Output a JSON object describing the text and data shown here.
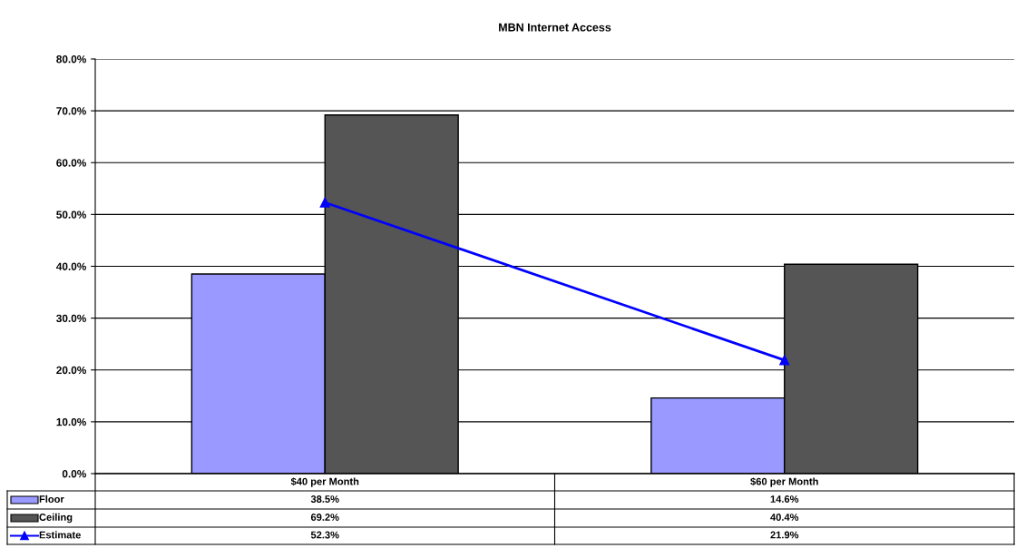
{
  "chart_data": {
    "type": "bar",
    "title": "MBN Internet Access",
    "categories": [
      "$40 per Month",
      "$60 per Month"
    ],
    "series": [
      {
        "name": "Floor",
        "color": "#9999ff",
        "values": [
          38.5,
          14.6
        ],
        "value_labels": [
          "38.5%",
          "14.6%"
        ]
      },
      {
        "name": "Ceiling",
        "color": "#555555",
        "values": [
          69.2,
          40.4
        ],
        "value_labels": [
          "69.2%",
          "40.4%"
        ]
      },
      {
        "name": "Estimate",
        "type": "line",
        "color": "#0000ff",
        "marker": "triangle",
        "values": [
          52.3,
          21.9
        ],
        "value_labels": [
          "52.3%",
          "21.9%"
        ]
      }
    ],
    "ylim": [
      0,
      80
    ],
    "yticks": [
      {
        "value": 0,
        "label": "0.0%"
      },
      {
        "value": 10,
        "label": "10.0%"
      },
      {
        "value": 20,
        "label": "20.0%"
      },
      {
        "value": 30,
        "label": "30.0%"
      },
      {
        "value": 40,
        "label": "40.0%"
      },
      {
        "value": 50,
        "label": "50.0%"
      },
      {
        "value": 60,
        "label": "60.0%"
      },
      {
        "value": 70,
        "label": "70.0%"
      },
      {
        "value": 80,
        "label": "80.0%"
      }
    ],
    "grid": "y",
    "legend": "bottom left"
  }
}
